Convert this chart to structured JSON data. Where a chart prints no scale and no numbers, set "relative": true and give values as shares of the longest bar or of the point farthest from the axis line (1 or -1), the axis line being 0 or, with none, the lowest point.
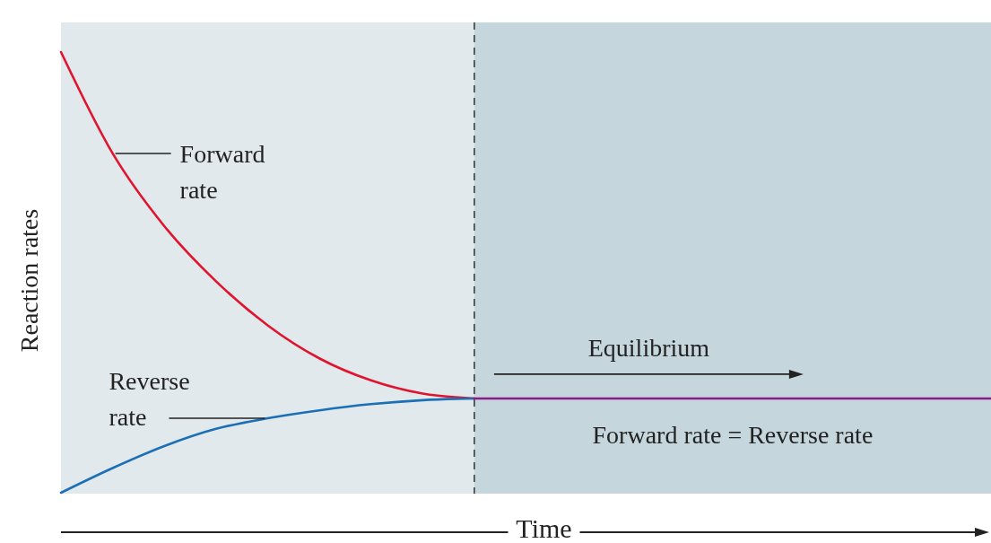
{
  "chart_data": {
    "type": "line",
    "relative": true,
    "xlabel": "Time",
    "ylabel": "Reaction rates",
    "categories": [
      null,
      null,
      null,
      null,
      null,
      null,
      null,
      null,
      null,
      null,
      null,
      null,
      null,
      null,
      null,
      null,
      null,
      null,
      null
    ],
    "series": [
      {
        "name": "Forward rate",
        "color": "#e0142e",
        "values": [
          1.0,
          0.77,
          0.605,
          0.48,
          0.38,
          0.305,
          0.255,
          0.225,
          0.214,
          null,
          null,
          null,
          null,
          null,
          null,
          null,
          null,
          null,
          null
        ]
      },
      {
        "name": "Reverse rate",
        "color": "#1a6fb5",
        "values": [
          0,
          0.056,
          0.106,
          0.145,
          0.169,
          0.187,
          0.201,
          0.21,
          0.214,
          null,
          null,
          null,
          null,
          null,
          null,
          null,
          null,
          null,
          null
        ]
      },
      {
        "name": "Forward rate = Reverse rate",
        "color": "#8b1a8b",
        "values": [
          null,
          null,
          null,
          null,
          null,
          null,
          null,
          null,
          0.214,
          0.214,
          0.214,
          0.214,
          0.214,
          0.214,
          0.214,
          0.214,
          0.214,
          0.214,
          0.214
        ]
      }
    ],
    "annotations": [
      "Equilibrium"
    ]
  }
}
